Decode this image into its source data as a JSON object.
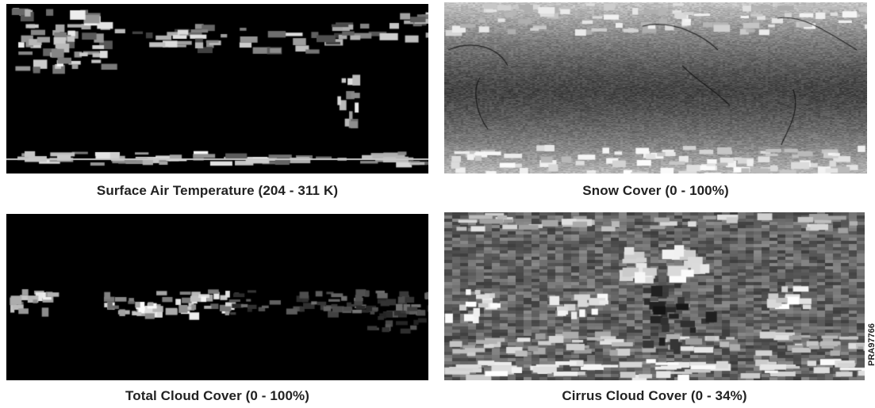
{
  "panels": [
    {
      "id": "surface-air-temperature",
      "caption": "Surface Air Temperature (204 - 311 K)",
      "palette": "dark-with-bright-bands",
      "background": "#000000"
    },
    {
      "id": "snow-cover",
      "caption": "Snow Cover (0 - 100%)",
      "palette": "gray-with-white-poles",
      "background": "#6f6f6f"
    },
    {
      "id": "total-cloud-cover",
      "caption": "Total Cloud Cover (0 - 100%)",
      "palette": "dark-with-equatorial-band",
      "background": "#000000"
    },
    {
      "id": "cirrus-cloud-cover",
      "caption": "Cirrus Cloud Cover (0 - 34%)",
      "palette": "mixed-gray-blocky",
      "background": "#5a5a5a"
    }
  ],
  "side_code": "PRA97766"
}
